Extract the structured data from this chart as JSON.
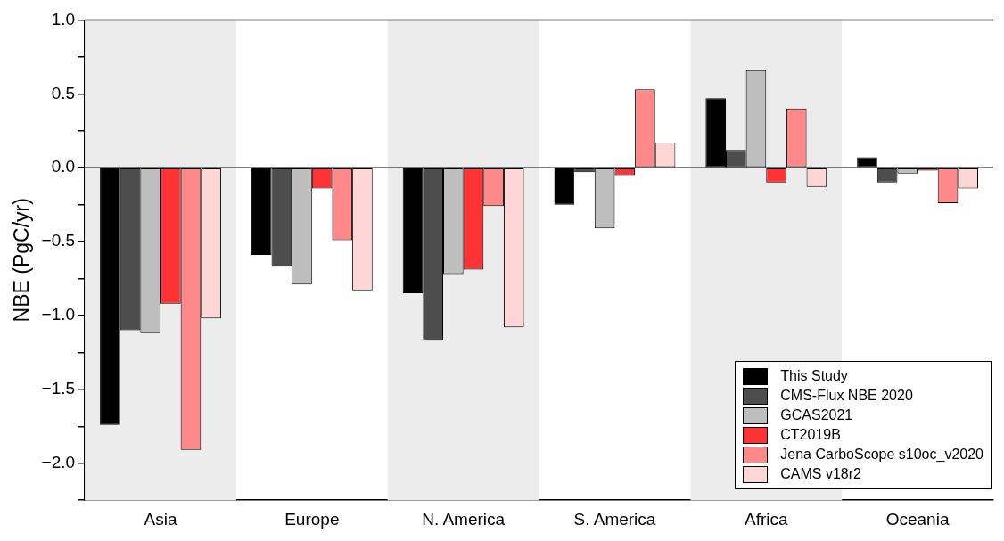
{
  "chart_data": {
    "type": "bar",
    "ylabel": "NBE (PgC/yr)",
    "categories": [
      "Asia",
      "Europe",
      "N. America",
      "S. America",
      "Africa",
      "Oceania"
    ],
    "series": [
      {
        "name": "This Study",
        "color": "#000000",
        "values": [
          -1.74,
          -0.59,
          -0.85,
          -0.25,
          0.47,
          0.07
        ]
      },
      {
        "name": "CMS-Flux NBE 2020",
        "color": "#4d4d4d",
        "values": [
          -1.1,
          -0.67,
          -1.17,
          -0.03,
          0.12,
          -0.1
        ]
      },
      {
        "name": "GCAS2021",
        "color": "#bebebe",
        "values": [
          -1.12,
          -0.79,
          -0.72,
          -0.41,
          0.66,
          -0.04
        ]
      },
      {
        "name": "CT2019B",
        "color": "#ff3333",
        "values": [
          -0.92,
          -0.14,
          -0.69,
          -0.05,
          -0.1,
          -0.02
        ]
      },
      {
        "name": "Jena CarboScope s10oc_v2020",
        "color": "#ff8888",
        "values": [
          -1.91,
          -0.49,
          -0.26,
          0.53,
          0.4,
          -0.24
        ]
      },
      {
        "name": "CAMS v18r2",
        "color": "#ffd6d6",
        "values": [
          -1.02,
          -0.83,
          -1.08,
          0.17,
          -0.13,
          -0.14
        ]
      }
    ],
    "ylim": [
      -2.25,
      1.0
    ],
    "yticks": [
      {
        "value": -2.25,
        "label": null
      },
      {
        "value": -2,
        "label": "−2.0"
      },
      {
        "value": -1.75,
        "label": null
      },
      {
        "value": -1.5,
        "label": "−1.5"
      },
      {
        "value": -1.25,
        "label": null
      },
      {
        "value": -1,
        "label": "−1.0"
      },
      {
        "value": -0.75,
        "label": null
      },
      {
        "value": -0.5,
        "label": "−0.5"
      },
      {
        "value": -0.25,
        "label": null
      },
      {
        "value": 0,
        "label": "0.0"
      },
      {
        "value": 0.25,
        "label": null
      },
      {
        "value": 0.5,
        "label": "0.5"
      },
      {
        "value": 0.75,
        "label": null
      },
      {
        "value": 1,
        "label": "1.0"
      }
    ],
    "bands": [
      {
        "axis": "x",
        "from": "Asia",
        "to": "Asia",
        "color": "#ececec"
      },
      {
        "axis": "x",
        "from": "N. America",
        "to": "N. America",
        "color": "#ececec"
      },
      {
        "axis": "x",
        "from": "Africa",
        "to": "Africa",
        "color": "#ececec"
      }
    ],
    "ref_lines": [
      {
        "axis": "y",
        "value": 0,
        "color": "#000000"
      }
    ],
    "grid": false,
    "legend": "bottom right"
  }
}
